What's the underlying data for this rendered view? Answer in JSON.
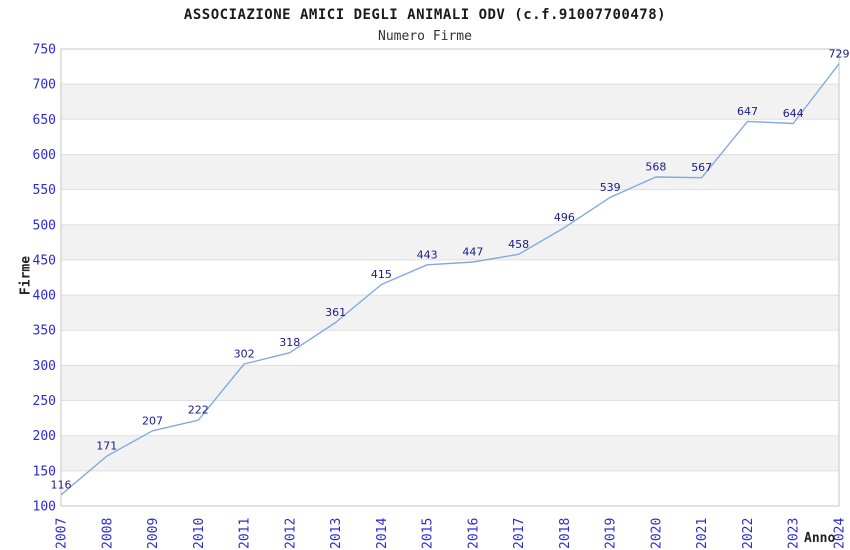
{
  "chart_data": {
    "type": "line",
    "title": "ASSOCIAZIONE AMICI DEGLI ANIMALI ODV (c.f.91007700478)",
    "subtitle": "Numero Firme",
    "xlabel": "Anno",
    "ylabel": "Firme",
    "categories": [
      "2007",
      "2008",
      "2009",
      "2010",
      "2011",
      "2012",
      "2013",
      "2014",
      "2015",
      "2016",
      "2017",
      "2018",
      "2019",
      "2020",
      "2021",
      "2022",
      "2023",
      "2024"
    ],
    "values": [
      116,
      171,
      207,
      222,
      302,
      318,
      361,
      415,
      443,
      447,
      458,
      496,
      539,
      568,
      567,
      647,
      644,
      729
    ],
    "ylim": [
      100,
      750
    ],
    "ytick_step": 50,
    "grid": "horizontal-bands",
    "legend": "none",
    "data_labels_shown": true,
    "colors": {
      "line": "#82abdc",
      "data_label": "#1a1a8c",
      "tick_label": "#2b2bd5",
      "band_fill": "#f2f2f2",
      "gridline": "#e0e0e0",
      "frame": "#c4c4c4",
      "background": "#ffffff"
    }
  }
}
